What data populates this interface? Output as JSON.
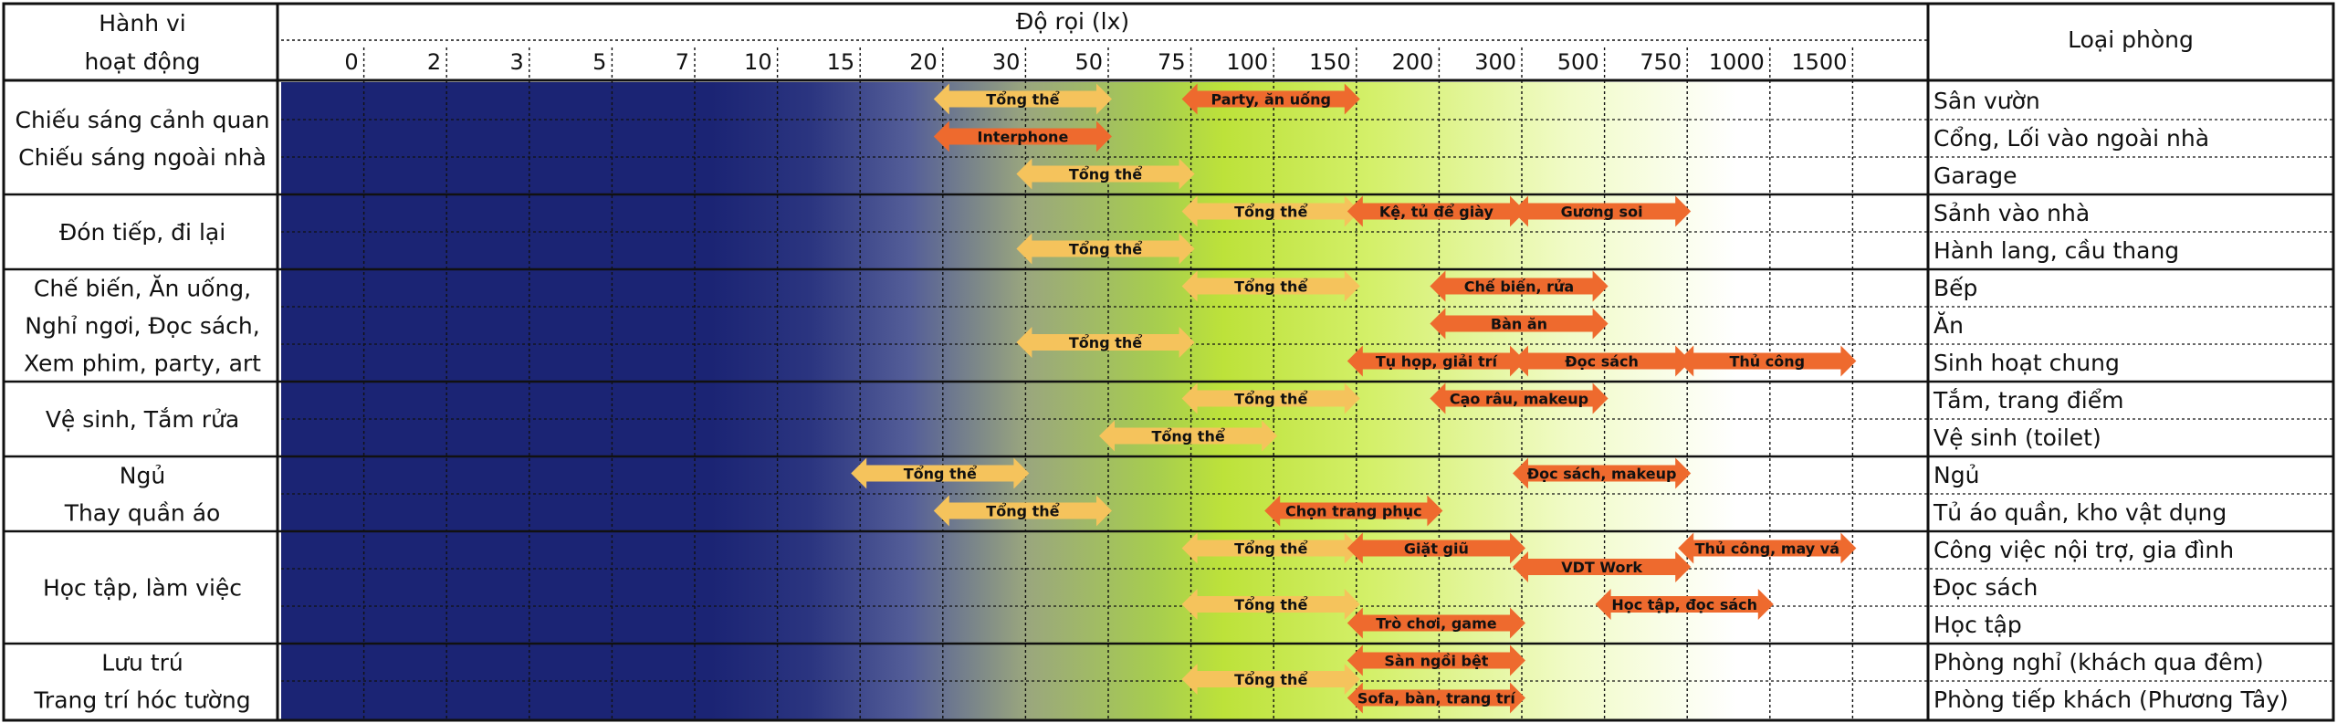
{
  "chart_data": {
    "type": "range_bar",
    "title": "Độ rọi (lx)",
    "header_left": [
      "Hành vi",
      "hoạt động"
    ],
    "header_right": "Loại phòng",
    "scale_ticks": [
      "0",
      "2",
      "3",
      "5",
      "7",
      "10",
      "15",
      "20",
      "30",
      "50",
      "75",
      "100",
      "150",
      "200",
      "300",
      "500",
      "750",
      "1000",
      "1500"
    ],
    "activity_groups": [
      {
        "lines": [
          "Chiếu sáng cảnh quan",
          "Chiếu sáng ngoài nhà"
        ],
        "rooms": [
          0,
          1,
          2
        ]
      },
      {
        "lines": [
          "Đón tiếp, đi lại"
        ],
        "rooms": [
          3,
          4
        ]
      },
      {
        "lines": [
          "Chế biến, Ăn uống,",
          "Nghỉ ngơi, Đọc sách,",
          "Xem phim, party, art"
        ],
        "rooms": [
          5,
          6,
          7
        ]
      },
      {
        "lines": [
          "Vệ sinh, Tắm rửa"
        ],
        "rooms": [
          8,
          9
        ]
      },
      {
        "lines": [
          "Ngủ",
          "Thay quần áo"
        ],
        "rooms": [
          10,
          11
        ]
      },
      {
        "lines": [
          "Học tập, làm việc"
        ],
        "rooms": [
          12,
          13,
          14
        ]
      },
      {
        "lines": [
          "Lưu trú",
          "Trang trí hóc tường"
        ],
        "rooms": [
          15,
          16
        ]
      }
    ],
    "rooms": [
      "Sân vườn",
      "Cổng, Lối vào ngoài nhà",
      "Garage",
      "Sảnh vào nhà",
      "Hành lang, cầu thang",
      "Bếp",
      "Ăn",
      "Sinh hoạt chung",
      "Tắm, trang điểm",
      "Vệ sinh (toilet)",
      "Ngủ",
      "Tủ áo quần, kho vật dụng",
      "Công việc nội trợ, gia đình",
      "Đọc sách",
      "Học tập",
      "Phòng nghỉ (khách qua đêm)",
      "Phòng tiếp khách (Phương Tây)"
    ],
    "ranges": [
      {
        "label": "Tổng thể",
        "from": "20",
        "to": "50",
        "row": 0,
        "kind": "general"
      },
      {
        "label": "Party, ăn uống",
        "from": "75",
        "to": "150",
        "row": 0,
        "kind": "task"
      },
      {
        "label": "Interphone",
        "from": "20",
        "to": "50",
        "row": 1,
        "kind": "task"
      },
      {
        "label": "Tổng thể",
        "from": "30",
        "to": "75",
        "row": 2,
        "kind": "general"
      },
      {
        "label": "Tổng thể",
        "from": "75",
        "to": "150",
        "row": 3,
        "kind": "general"
      },
      {
        "label": "Kệ, tủ để giày",
        "from": "150",
        "to": "300",
        "row": 3,
        "kind": "task"
      },
      {
        "label": "Gương soi",
        "from": "300",
        "to": "750",
        "row": 3,
        "kind": "task"
      },
      {
        "label": "Tổng thể",
        "from": "30",
        "to": "75",
        "row": 4,
        "kind": "general"
      },
      {
        "label": "Tổng thể",
        "from": "75",
        "to": "150",
        "row": 5,
        "kind": "general"
      },
      {
        "label": "Chế biến, rửa",
        "from": "200",
        "to": "500",
        "row": 5,
        "kind": "task"
      },
      {
        "label": "Bàn ăn",
        "from": "200",
        "to": "500",
        "row": 6,
        "kind": "task"
      },
      {
        "label": "Tổng thể",
        "from": "30",
        "to": "75",
        "row": 6.5,
        "kind": "general"
      },
      {
        "label": "Tụ họp, giải trí",
        "from": "150",
        "to": "300",
        "row": 7,
        "kind": "task"
      },
      {
        "label": "Đọc sách",
        "from": "300",
        "to": "750",
        "row": 7,
        "kind": "task"
      },
      {
        "label": "Thủ công",
        "from": "750",
        "to": "1500",
        "row": 7,
        "kind": "task"
      },
      {
        "label": "Tổng thể",
        "from": "75",
        "to": "150",
        "row": 8,
        "kind": "general"
      },
      {
        "label": "Cạo râu, makeup",
        "from": "200",
        "to": "500",
        "row": 8,
        "kind": "task"
      },
      {
        "label": "Tổng thể",
        "from": "50",
        "to": "100",
        "row": 9,
        "kind": "general"
      },
      {
        "label": "Tổng thể",
        "from": "15",
        "to": "30",
        "row": 10,
        "kind": "general"
      },
      {
        "label": "Đọc sách, makeup",
        "from": "300",
        "to": "750",
        "row": 10,
        "kind": "task"
      },
      {
        "label": "Tổng thể",
        "from": "20",
        "to": "50",
        "row": 11,
        "kind": "general"
      },
      {
        "label": "Chọn trang phục",
        "from": "100",
        "to": "200",
        "row": 11,
        "kind": "task"
      },
      {
        "label": "Tổng thể",
        "from": "75",
        "to": "150",
        "row": 12,
        "kind": "general"
      },
      {
        "label": "Giặt giũ",
        "from": "150",
        "to": "300",
        "row": 12,
        "kind": "task"
      },
      {
        "label": "Thủ công, may vá",
        "from": "750",
        "to": "1500",
        "row": 12,
        "kind": "task"
      },
      {
        "label": "VDT Work",
        "from": "300",
        "to": "750",
        "row": 12.5,
        "kind": "task"
      },
      {
        "label": "Tổng thể",
        "from": "75",
        "to": "150",
        "row": 13.5,
        "kind": "general"
      },
      {
        "label": "Học tập, đọc sách",
        "from": "500",
        "to": "1000",
        "row": 13.5,
        "kind": "task"
      },
      {
        "label": "Trò chơi, game",
        "from": "150",
        "to": "300",
        "row": 14,
        "kind": "task"
      },
      {
        "label": "Sàn ngồi bệt",
        "from": "150",
        "to": "300",
        "row": 15,
        "kind": "task"
      },
      {
        "label": "Tổng thể",
        "from": "75",
        "to": "150",
        "row": 15.5,
        "kind": "general"
      },
      {
        "label": "Sofa, bàn, trang trí",
        "from": "150",
        "to": "300",
        "row": 16,
        "kind": "task"
      }
    ],
    "colors": {
      "general": "#F5C35C",
      "task": "#EE6A2E",
      "dark": "#1B2474",
      "mid": "#BDE23A",
      "light": "#FFFFFF"
    }
  }
}
